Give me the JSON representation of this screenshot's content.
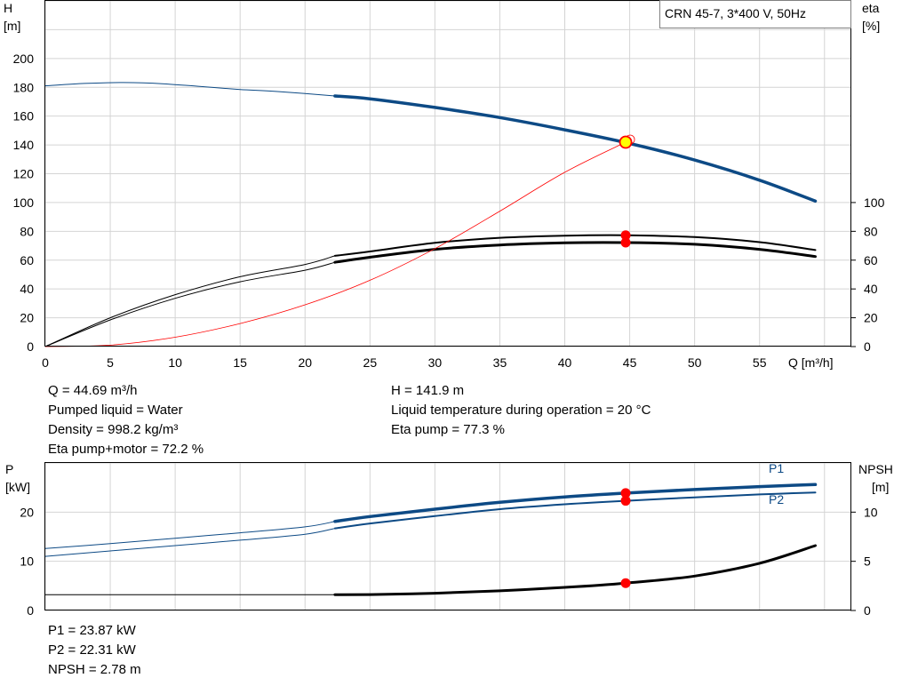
{
  "colors": {
    "grid": "#d4d4d4",
    "head_curve": "#0d4a85",
    "power_curve": "#0d4a85",
    "black_curve": "#000000",
    "red_curve": "#ff0000",
    "marker": "#ff0000",
    "duty_marker_fill": "#ffff00"
  },
  "legend_box": "CRN 45-7, 3*400 V, 50Hz",
  "info_top": {
    "left": [
      "Q = 44.69 m³/h",
      "Pumped liquid = Water",
      "Density = 998.2 kg/m³",
      "Eta pump+motor = 72.2 %"
    ],
    "right": [
      "H = 141.9 m",
      "Liquid temperature during operation = 20 °C",
      "Eta pump = 77.3 %"
    ]
  },
  "info_bottom": [
    "P1 = 23.87 kW",
    "P2 = 22.31 kW",
    "NPSH = 2.78 m"
  ],
  "chart_data": [
    {
      "type": "line",
      "x_axis": {
        "label": "Q [m³/h]",
        "range": [
          0,
          62
        ],
        "ticks": [
          0,
          5,
          10,
          15,
          20,
          25,
          30,
          35,
          40,
          45,
          50,
          55
        ]
      },
      "y_left": {
        "label_top": "H",
        "label_unit": "[m]",
        "range": [
          0,
          240
        ],
        "ticks": [
          0,
          20,
          40,
          60,
          80,
          100,
          120,
          140,
          160,
          180,
          200
        ]
      },
      "y_right": {
        "label_top": "eta",
        "label_unit": "[%]",
        "range": [
          0,
          100
        ],
        "ticks": [
          0,
          20,
          40,
          60,
          80,
          100
        ]
      },
      "grid": true,
      "duty_point": {
        "x": 44.69,
        "y": 141.9
      },
      "series": [
        {
          "x": [
            0,
            3,
            6,
            9,
            12,
            15,
            18,
            22.3,
            25,
            30,
            35,
            40,
            45,
            50,
            55,
            59.3
          ],
          "y": [
            181,
            182.7,
            183.3,
            182.5,
            180.5,
            178.5,
            177,
            174,
            172,
            166,
            159,
            150.5,
            141,
            129.5,
            115.5,
            101
          ]
        },
        {
          "x": [
            0,
            5,
            10,
            15,
            20,
            22.3,
            25,
            30,
            35,
            40,
            44.69,
            50,
            55,
            59.3
          ],
          "y": [
            0,
            20,
            36,
            48.5,
            57,
            63,
            66,
            72,
            75.5,
            77,
            77.3,
            76,
            72.5,
            67
          ]
        },
        {
          "x": [
            0,
            5,
            10,
            15,
            20,
            22.3,
            25,
            30,
            35,
            40,
            44.69,
            50,
            55,
            59.3
          ],
          "y": [
            0,
            18.5,
            33.5,
            45,
            53,
            58.5,
            62,
            67.5,
            70.5,
            72,
            72.2,
            71,
            67.5,
            62.5
          ]
        },
        {
          "x": [
            0,
            5,
            10,
            15,
            20,
            25,
            30,
            35,
            40,
            44.69
          ],
          "y": [
            0,
            1,
            6.5,
            16,
            29,
            46,
            68,
            94,
            121,
            141.9
          ]
        }
      ],
      "markers_right_axis": [
        77.3,
        72.2
      ]
    },
    {
      "type": "line",
      "x_axis": {
        "range": [
          0,
          62
        ]
      },
      "y_left": {
        "label_top": "P",
        "label_unit": "[kW]",
        "range": [
          0,
          30
        ],
        "ticks": [
          0,
          10,
          20
        ]
      },
      "y_right": {
        "label_top": "NPSH",
        "label_unit": "[m]",
        "range": [
          0,
          15
        ],
        "ticks": [
          0,
          5,
          10
        ]
      },
      "grid": true,
      "series": [
        {
          "name": "P1",
          "x": [
            0,
            5,
            10,
            15,
            20,
            22.3,
            25,
            30,
            35,
            40,
            44.69,
            50,
            55,
            59.3
          ],
          "y": [
            12.6,
            13.6,
            14.7,
            15.8,
            17.0,
            18.1,
            19.1,
            20.6,
            22.0,
            23.1,
            23.87,
            24.6,
            25.2,
            25.6
          ]
        },
        {
          "name": "P2",
          "x": [
            0,
            5,
            10,
            15,
            20,
            22.3,
            25,
            30,
            35,
            40,
            44.69,
            50,
            55,
            59.3
          ],
          "y": [
            11.0,
            12.1,
            13.2,
            14.3,
            15.5,
            16.7,
            17.7,
            19.2,
            20.6,
            21.6,
            22.31,
            23.0,
            23.6,
            24.0
          ]
        },
        {
          "x": [
            0,
            22.3,
            25,
            30,
            35,
            40,
            44.69,
            50,
            55,
            59.3
          ],
          "y": [
            1.6,
            1.6,
            1.62,
            1.75,
            2.0,
            2.35,
            2.78,
            3.5,
            4.8,
            6.6
          ]
        }
      ],
      "markers": {
        "P1": 23.87,
        "P2": 22.31,
        "npsh": 2.78
      }
    }
  ]
}
